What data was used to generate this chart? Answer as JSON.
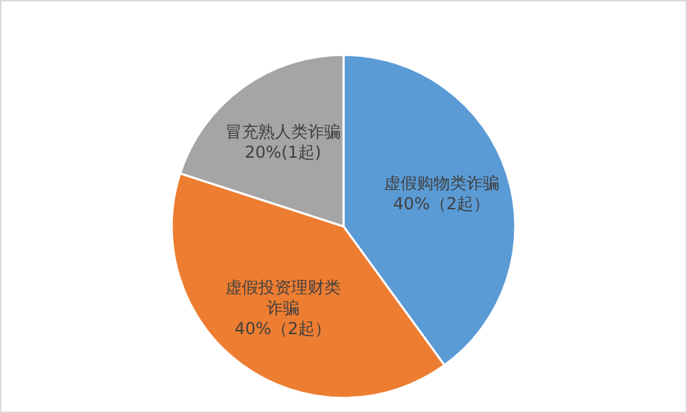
{
  "chart_data": {
    "type": "pie",
    "categories": [
      "虚假购物类诈骗",
      "虚假投资理财类诈骗",
      "冒充熟人类诈骗"
    ],
    "values": [
      40,
      40,
      20
    ],
    "value_labels": [
      "40%（2起）",
      "40%（2起）",
      "20%(1起)"
    ],
    "colors": [
      "#5b9bd5",
      "#ed7d31",
      "#a5a5a5"
    ]
  }
}
